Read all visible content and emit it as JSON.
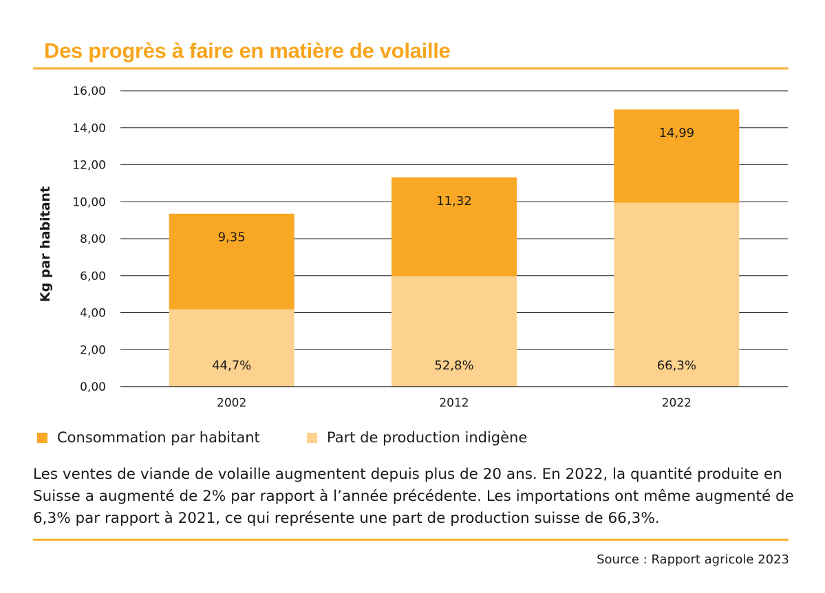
{
  "chart_data": {
    "type": "bar",
    "stacked": true,
    "title": "Des progrès à faire en matière de volaille",
    "ylabel": "Kg par habitant",
    "xlabel": "",
    "categories": [
      "2002",
      "2012",
      "2022"
    ],
    "ylim": [
      0,
      16
    ],
    "yticks": [
      "0,00",
      "2,00",
      "4,00",
      "6,00",
      "8,00",
      "10,00",
      "12,00",
      "14,00",
      "16,00"
    ],
    "yticks_values": [
      0,
      2,
      4,
      6,
      8,
      10,
      12,
      14,
      16
    ],
    "grid": true,
    "legend_placement": "bottom",
    "totals": [
      9.35,
      11.32,
      14.99
    ],
    "total_labels": [
      "9,35",
      "11,32",
      "14,99"
    ],
    "domestic_share": [
      44.7,
      52.8,
      66.3
    ],
    "share_labels": [
      "44,7%",
      "52,8%",
      "66,3%"
    ],
    "series": [
      {
        "name": "Consommation par habitant",
        "color": "#f9a825"
      },
      {
        "name": "Part de production indigène",
        "color": "#fdd18e"
      }
    ]
  },
  "caption": "Les ventes de viande de volaille augmentent depuis plus de 20 ans. En 2022, la quantité produite en Suisse a augmenté de 2% par rapport à l’année précédente. Les importations ont même augmenté de 6,3% par rapport à 2021, ce qui représente une part de production suisse de 66,3%.",
  "source": "Source : Rapport agricole 2023",
  "colors": {
    "accent": "#f8a51e",
    "rule": "#f7b132"
  }
}
